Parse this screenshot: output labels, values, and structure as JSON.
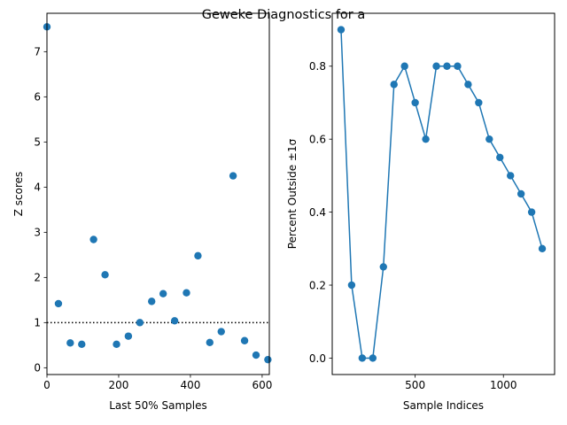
{
  "suptitle": "Geweke Diagnostics for a",
  "chart_data": [
    {
      "type": "scatter",
      "xlabel": "Last 50% Samples",
      "ylabel": "Z scores",
      "xlim": [
        0,
        620
      ],
      "ylim": [
        -0.15,
        7.85
      ],
      "xticks": [
        0,
        200,
        400,
        600
      ],
      "xtick_labels": [
        "0",
        "200",
        "400",
        "600"
      ],
      "yticks": [
        0,
        1,
        2,
        3,
        4,
        5,
        6,
        7
      ],
      "ytick_labels": [
        "0",
        "1",
        "2",
        "3",
        "4",
        "5",
        "6",
        "7"
      ],
      "reference_line": {
        "y": 1,
        "style": "dotted",
        "color": "#000000"
      },
      "series": [
        {
          "color": "#1f77b4",
          "x": [
            0,
            32,
            65,
            97,
            130,
            162,
            194,
            227,
            259,
            292,
            324,
            356,
            389,
            421,
            454,
            486,
            519,
            551,
            583,
            616
          ],
          "y": [
            7.55,
            1.42,
            0.55,
            0.52,
            2.84,
            2.06,
            0.52,
            0.7,
            1.0,
            1.47,
            1.64,
            1.04,
            1.66,
            2.48,
            0.56,
            0.8,
            4.25,
            0.6,
            0.28,
            0.18
          ]
        }
      ]
    },
    {
      "type": "line",
      "xlabel": "Sample Indices",
      "ylabel": "Percent Outside ±1σ",
      "xlim": [
        30,
        1290
      ],
      "ylim": [
        -0.045,
        0.945
      ],
      "xticks": [
        500,
        1000
      ],
      "xtick_labels": [
        "500",
        "1000"
      ],
      "yticks": [
        0.0,
        0.2,
        0.4,
        0.6,
        0.8
      ],
      "ytick_labels": [
        "0.0",
        "0.2",
        "0.4",
        "0.6",
        "0.8"
      ],
      "series": [
        {
          "color": "#1f77b4",
          "marker": "circle",
          "x": [
            80,
            140,
            200,
            260,
            320,
            380,
            440,
            500,
            560,
            620,
            680,
            740,
            800,
            860,
            920,
            980,
            1040,
            1100,
            1160,
            1220
          ],
          "y": [
            0.9,
            0.2,
            0.0,
            0.0,
            0.25,
            0.75,
            0.8,
            0.7,
            0.6,
            0.8,
            0.8,
            0.8,
            0.75,
            0.7,
            0.6,
            0.55,
            0.5,
            0.45,
            0.4,
            0.3
          ]
        }
      ]
    }
  ]
}
